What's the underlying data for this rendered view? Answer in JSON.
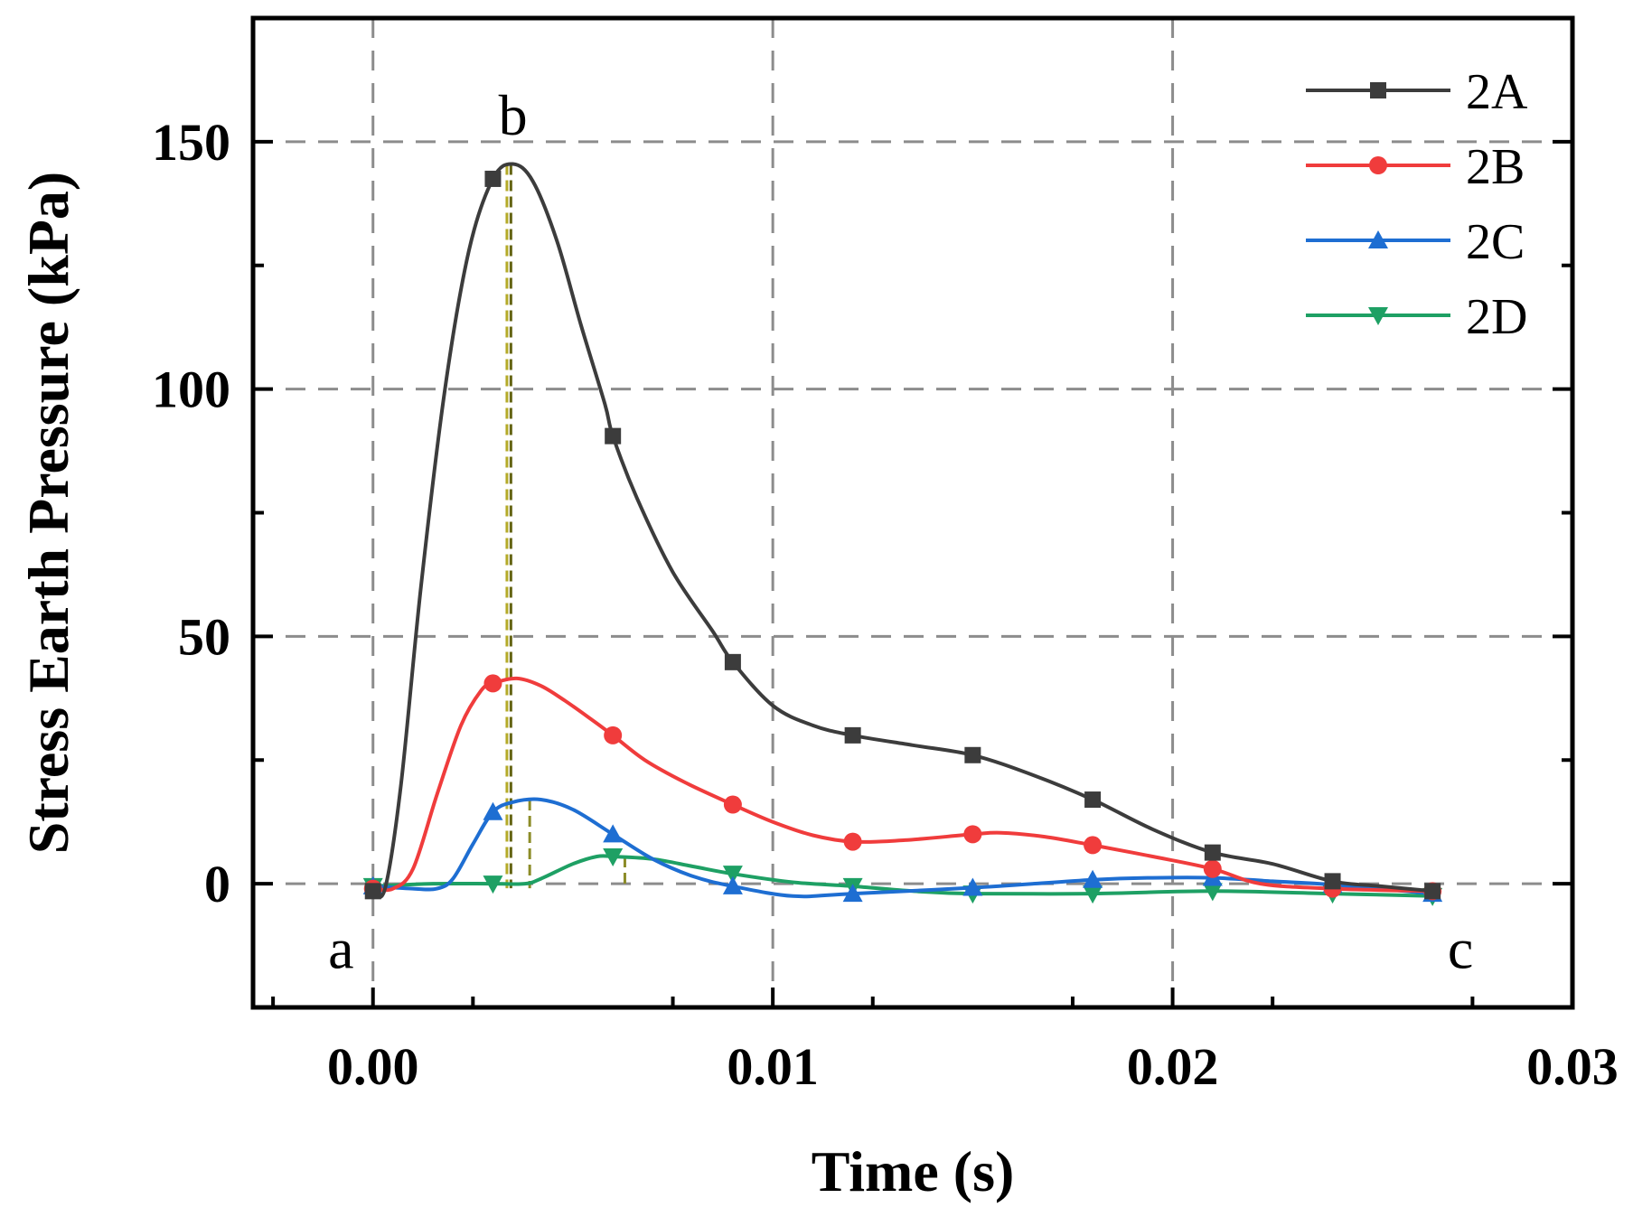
{
  "chart_data": {
    "type": "line",
    "title": "",
    "xlabel": "Time (s)",
    "ylabel": "Stress Earth Pressure (kPa)",
    "xlim": [
      -0.003,
      0.03
    ],
    "ylim": [
      -25,
      175
    ],
    "xticks": [
      0.0,
      0.01,
      0.02,
      0.03
    ],
    "xtick_labels": [
      "0.00",
      "0.01",
      "0.02",
      "0.03"
    ],
    "yticks": [
      0,
      50,
      100,
      150
    ],
    "ytick_labels": [
      "0",
      "50",
      "100",
      "150"
    ],
    "grid": true,
    "legend_position": "top-right",
    "series": [
      {
        "name": "2A",
        "color": "#3c3c3c",
        "marker": "square",
        "markers": [
          [
            0,
            -1.5
          ],
          [
            0.003,
            142.5
          ],
          [
            0.006,
            90.5
          ],
          [
            0.009,
            44.8
          ],
          [
            0.012,
            30
          ],
          [
            0.015,
            26
          ],
          [
            0.018,
            17
          ],
          [
            0.021,
            6.3
          ],
          [
            0.024,
            0.5
          ],
          [
            0.0265,
            -1.5
          ]
        ],
        "curve": [
          [
            0,
            -1.5
          ],
          [
            0.0003,
            -1
          ],
          [
            0.0007,
            20
          ],
          [
            0.0012,
            60
          ],
          [
            0.0018,
            100
          ],
          [
            0.0024,
            128
          ],
          [
            0.003,
            142.5
          ],
          [
            0.0035,
            145.5
          ],
          [
            0.004,
            142
          ],
          [
            0.0046,
            130
          ],
          [
            0.0052,
            113
          ],
          [
            0.0058,
            97
          ],
          [
            0.006,
            90.5
          ],
          [
            0.0066,
            78
          ],
          [
            0.0075,
            63
          ],
          [
            0.0085,
            51
          ],
          [
            0.009,
            44.8
          ],
          [
            0.01,
            36
          ],
          [
            0.011,
            32
          ],
          [
            0.012,
            30
          ],
          [
            0.0135,
            28
          ],
          [
            0.015,
            26
          ],
          [
            0.0165,
            22
          ],
          [
            0.018,
            17
          ],
          [
            0.0195,
            11
          ],
          [
            0.021,
            6.3
          ],
          [
            0.0225,
            4
          ],
          [
            0.024,
            0.5
          ],
          [
            0.0252,
            -0.5
          ],
          [
            0.0265,
            -1.5
          ]
        ]
      },
      {
        "name": "2B",
        "color": "#f03c3c",
        "marker": "circle",
        "markers": [
          [
            0,
            -1
          ],
          [
            0.003,
            40.5
          ],
          [
            0.006,
            30
          ],
          [
            0.009,
            16
          ],
          [
            0.012,
            8.5
          ],
          [
            0.015,
            10
          ],
          [
            0.018,
            7.8
          ],
          [
            0.021,
            3
          ],
          [
            0.024,
            -1
          ],
          [
            0.0265,
            -1.5
          ]
        ],
        "curve": [
          [
            0,
            -1
          ],
          [
            0.0005,
            -1
          ],
          [
            0.001,
            3
          ],
          [
            0.0016,
            18
          ],
          [
            0.0022,
            32
          ],
          [
            0.0027,
            39
          ],
          [
            0.003,
            40.5
          ],
          [
            0.0036,
            41.5
          ],
          [
            0.0042,
            40
          ],
          [
            0.0048,
            37
          ],
          [
            0.0055,
            33
          ],
          [
            0.006,
            30
          ],
          [
            0.0068,
            25
          ],
          [
            0.0078,
            20.5
          ],
          [
            0.009,
            16
          ],
          [
            0.01,
            12.5
          ],
          [
            0.011,
            9.8
          ],
          [
            0.012,
            8.5
          ],
          [
            0.0133,
            8.8
          ],
          [
            0.015,
            10
          ],
          [
            0.0157,
            10.3
          ],
          [
            0.0168,
            9.5
          ],
          [
            0.018,
            7.8
          ],
          [
            0.0195,
            5.5
          ],
          [
            0.021,
            3
          ],
          [
            0.0222,
            0
          ],
          [
            0.024,
            -1
          ],
          [
            0.0265,
            -1.5
          ]
        ]
      },
      {
        "name": "2C",
        "color": "#1e6ed2",
        "marker": "triangle-up",
        "markers": [
          [
            0,
            -0.5
          ],
          [
            0.003,
            14.5
          ],
          [
            0.006,
            10
          ],
          [
            0.009,
            -0.5
          ],
          [
            0.012,
            -2
          ],
          [
            0.015,
            -0.8
          ],
          [
            0.018,
            0.8
          ],
          [
            0.021,
            1.2
          ],
          [
            0.024,
            -0.2
          ],
          [
            0.0265,
            -2
          ]
        ],
        "curve": [
          [
            0,
            -0.5
          ],
          [
            0.001,
            -1
          ],
          [
            0.0016,
            -1
          ],
          [
            0.002,
            1
          ],
          [
            0.0025,
            8
          ],
          [
            0.003,
            14.5
          ],
          [
            0.0035,
            16.5
          ],
          [
            0.0042,
            17
          ],
          [
            0.005,
            15
          ],
          [
            0.006,
            10
          ],
          [
            0.007,
            5
          ],
          [
            0.008,
            1.5
          ],
          [
            0.009,
            -0.5
          ],
          [
            0.0105,
            -2.5
          ],
          [
            0.012,
            -2
          ],
          [
            0.015,
            -0.8
          ],
          [
            0.018,
            0.8
          ],
          [
            0.0195,
            1.2
          ],
          [
            0.021,
            1.2
          ],
          [
            0.0225,
            0.5
          ],
          [
            0.024,
            -0.2
          ],
          [
            0.0265,
            -2
          ]
        ]
      },
      {
        "name": "2D",
        "color": "#1ea064",
        "marker": "triangle-down",
        "markers": [
          [
            0,
            -0.5
          ],
          [
            0.003,
            0
          ],
          [
            0.006,
            5.5
          ],
          [
            0.009,
            2
          ],
          [
            0.012,
            -0.5
          ],
          [
            0.015,
            -2
          ],
          [
            0.018,
            -2
          ],
          [
            0.021,
            -1.5
          ],
          [
            0.024,
            -2
          ],
          [
            0.0265,
            -2.5
          ]
        ],
        "curve": [
          [
            0,
            -0.5
          ],
          [
            0.0015,
            0
          ],
          [
            0.003,
            0
          ],
          [
            0.0038,
            0
          ],
          [
            0.0042,
            1
          ],
          [
            0.005,
            4
          ],
          [
            0.0056,
            5.5
          ],
          [
            0.006,
            5.5
          ],
          [
            0.007,
            5
          ],
          [
            0.008,
            3.5
          ],
          [
            0.009,
            2
          ],
          [
            0.0105,
            0.3
          ],
          [
            0.012,
            -0.5
          ],
          [
            0.0135,
            -1.5
          ],
          [
            0.015,
            -2
          ],
          [
            0.018,
            -2
          ],
          [
            0.021,
            -1.5
          ],
          [
            0.024,
            -2
          ],
          [
            0.0265,
            -2.5
          ]
        ]
      }
    ],
    "peak_markers": [
      {
        "x": 0.00335,
        "y_top": 145.5,
        "color": "#b4aa28"
      },
      {
        "x": 0.00345,
        "y_top": 145.5,
        "color": "#646414"
      },
      {
        "x": 0.00392,
        "y_top": 17,
        "color": "#8c8c28"
      },
      {
        "x": 0.0063,
        "y_top": 5.5,
        "color": "#8c8c28"
      }
    ],
    "annotations": [
      {
        "text": "a",
        "x": -0.0008,
        "y": -13
      },
      {
        "text": "b",
        "x": 0.0035,
        "y": 155.5
      },
      {
        "text": "c",
        "x": 0.0272,
        "y": -13
      }
    ]
  }
}
